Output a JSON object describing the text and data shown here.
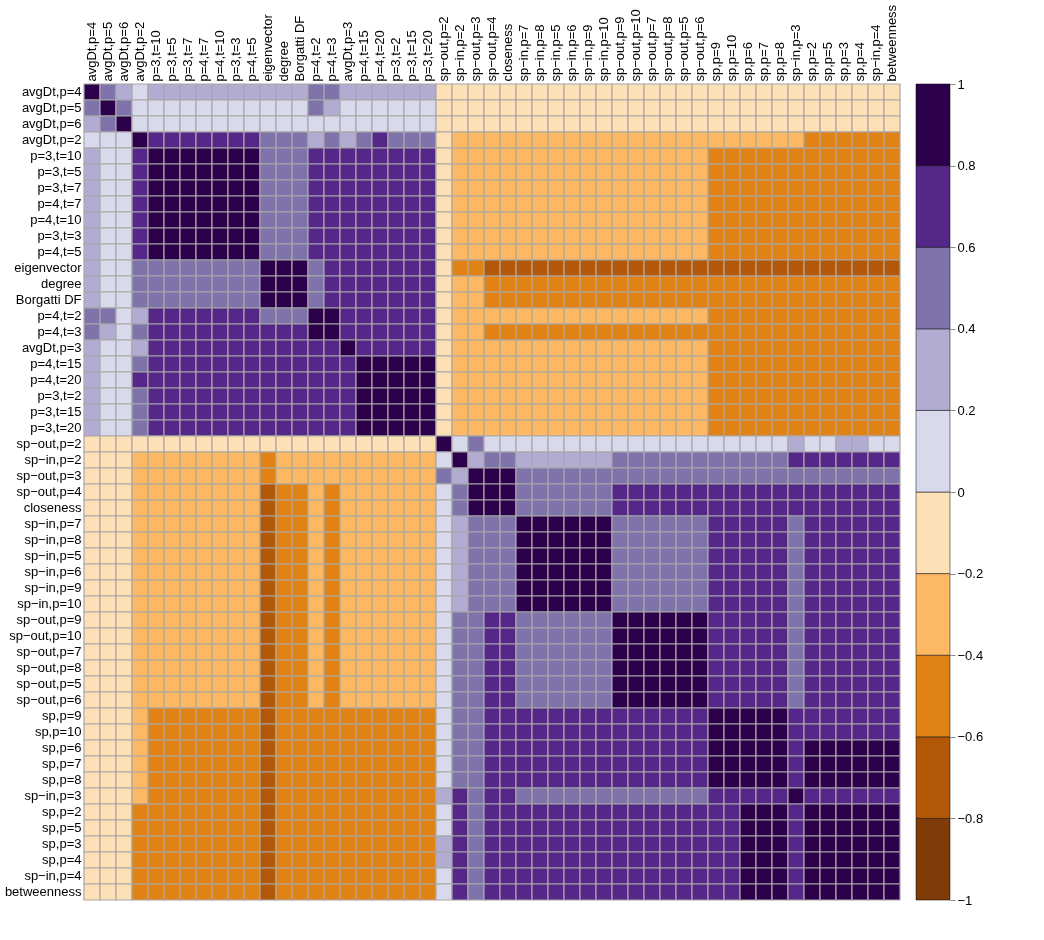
{
  "chart_data": {
    "type": "heatmap",
    "categories": [
      "avgDt,p=4",
      "avgDt,p=5",
      "avgDt,p=6",
      "avgDt,p=2",
      "p=3,t=10",
      "p=3,t=5",
      "p=3,t=7",
      "p=4,t=7",
      "p=4,t=10",
      "p=3,t=3",
      "p=4,t=5",
      "eigenvector",
      "degree",
      "Borgatti DF",
      "p=4,t=2",
      "p=4,t=3",
      "avgDt,p=3",
      "p=4,t=15",
      "p=4,t=20",
      "p=3,t=2",
      "p=3,t=15",
      "p=3,t=20",
      "sp−out,p=2",
      "sp−in,p=2",
      "sp−out,p=3",
      "sp−out,p=4",
      "closeness",
      "sp−in,p=7",
      "sp−in,p=8",
      "sp−in,p=5",
      "sp−in,p=6",
      "sp−in,p=9",
      "sp−in,p=10",
      "sp−out,p=9",
      "sp−out,p=10",
      "sp−out,p=7",
      "sp−out,p=8",
      "sp−out,p=5",
      "sp−out,p=6",
      "sp,p=9",
      "sp,p=10",
      "sp,p=6",
      "sp,p=7",
      "sp,p=8",
      "sp−in,p=3",
      "sp,p=2",
      "sp,p=5",
      "sp,p=3",
      "sp,p=4",
      "sp−in,p=4",
      "betweenness"
    ],
    "y_categories": [
      "avgDt,p=4",
      "avgDt,p=5",
      "avgDt,p=6",
      "avgDt,p=2",
      "p=3,t=10",
      "p=3,t=5",
      "p=3,t=7",
      "p=4,t=7",
      "p=4,t=10",
      "p=3,t=3",
      "p=4,t=5",
      "eigenvector",
      "degree",
      "Borgatti DF",
      "p=4,t=2",
      "p=4,t=3",
      "avgDt,p=3",
      "p=4,t=15",
      "p=4,t=20",
      "p=3,t=2",
      "p=3,t=15",
      "p=3,t=20",
      "sp−out,p=2",
      "sp−in,p=2",
      "sp−out,p=3",
      "sp−out,p=4",
      "closeness",
      "sp−in,p=7",
      "sp−in,p=8",
      "sp−in,p=5",
      "sp−in,p=6",
      "sp−in,p=9",
      "sp−in,p=10",
      "sp−out,p=9",
      "sp−out,p=10",
      "sp−out,p=7",
      "sp−out,p=8",
      "sp−out,p=5",
      "sp−out,p=6",
      "sp,p=9",
      "sp,p=10",
      "sp,p=6",
      "sp,p=7",
      "sp,p=8",
      "sp−in,p=3",
      "sp,p=2",
      "sp,p=5",
      "sp,p=3",
      "sp,p=4",
      "sp−in,p=4",
      "betweenness"
    ],
    "cells": [
      [
        1,
        0.5,
        0.3,
        0.1,
        0.3,
        0.3,
        0.3,
        0.3,
        0.3,
        0.3,
        0.3,
        0.3,
        0.3,
        0.3,
        0.5,
        0.5,
        0.3,
        0.3,
        0.3,
        0.3,
        0.3,
        0.3,
        -0.1,
        -0.1,
        -0.1,
        -0.1,
        -0.1,
        -0.1,
        -0.1,
        -0.1,
        -0.1,
        -0.1,
        -0.1,
        -0.1,
        -0.1,
        -0.1,
        -0.1,
        -0.1,
        -0.1,
        -0.1,
        -0.1,
        -0.1,
        -0.1,
        -0.1,
        -0.1,
        -0.1,
        -0.1,
        -0.1,
        -0.1,
        -0.1,
        -0.1
      ],
      [
        0.5,
        1,
        0.5,
        0.1,
        0.1,
        0.1,
        0.1,
        0.1,
        0.1,
        0.1,
        0.1,
        0.1,
        0.1,
        0.1,
        0.5,
        0.3,
        0.1,
        0.1,
        0.1,
        0.1,
        0.1,
        0.1,
        -0.1,
        -0.1,
        -0.1,
        -0.1,
        -0.1,
        -0.1,
        -0.1,
        -0.1,
        -0.1,
        -0.1,
        -0.1,
        -0.1,
        -0.1,
        -0.1,
        -0.1,
        -0.1,
        -0.1,
        -0.1,
        -0.1,
        -0.1,
        -0.1,
        -0.1,
        -0.1,
        -0.1,
        -0.1,
        -0.1,
        -0.1,
        -0.1,
        -0.1
      ],
      [
        0.3,
        0.5,
        1,
        0.1,
        0.1,
        0.1,
        0.1,
        0.1,
        0.1,
        0.1,
        0.1,
        0.1,
        0.1,
        0.1,
        0.1,
        0.1,
        0.1,
        0.1,
        0.1,
        0.1,
        0.1,
        0.1,
        -0.1,
        -0.1,
        -0.1,
        -0.1,
        -0.1,
        -0.1,
        -0.1,
        -0.1,
        -0.1,
        -0.1,
        -0.1,
        -0.1,
        -0.1,
        -0.1,
        -0.1,
        -0.1,
        -0.1,
        -0.1,
        -0.1,
        -0.1,
        -0.1,
        -0.1,
        -0.1,
        -0.1,
        -0.1,
        -0.1,
        -0.1,
        -0.1,
        -0.1
      ],
      [
        0.1,
        0.1,
        0.1,
        1,
        0.7,
        0.7,
        0.7,
        0.7,
        0.7,
        0.7,
        0.7,
        0.5,
        0.5,
        0.5,
        0.3,
        0.5,
        0.3,
        0.5,
        0.7,
        0.5,
        0.5,
        0.5,
        -0.1,
        -0.3,
        -0.3,
        -0.3,
        -0.3,
        -0.3,
        -0.3,
        -0.3,
        -0.3,
        -0.3,
        -0.3,
        -0.3,
        -0.3,
        -0.3,
        -0.3,
        -0.3,
        -0.3,
        -0.3,
        -0.3,
        -0.3,
        -0.3,
        -0.3,
        -0.3,
        -0.5,
        -0.5,
        -0.5,
        -0.5,
        -0.5,
        -0.5
      ],
      [
        0.3,
        0.1,
        0.1,
        0.7,
        1,
        0.9,
        0.9,
        0.9,
        0.9,
        0.9,
        0.9,
        0.5,
        0.5,
        0.5,
        0.7,
        0.7,
        0.7,
        0.7,
        0.7,
        0.7,
        0.7,
        0.7,
        -0.1,
        -0.3,
        -0.3,
        -0.3,
        -0.3,
        -0.3,
        -0.3,
        -0.3,
        -0.3,
        -0.3,
        -0.3,
        -0.3,
        -0.3,
        -0.3,
        -0.3,
        -0.3,
        -0.3,
        -0.5,
        -0.5,
        -0.5,
        -0.5,
        -0.5,
        -0.5,
        -0.5,
        -0.5,
        -0.5,
        -0.5,
        -0.5,
        -0.5
      ],
      [
        0.3,
        0.1,
        0.1,
        0.7,
        0.9,
        1,
        0.9,
        0.9,
        0.9,
        0.9,
        0.9,
        0.5,
        0.5,
        0.5,
        0.7,
        0.7,
        0.7,
        0.7,
        0.7,
        0.7,
        0.7,
        0.7,
        -0.1,
        -0.3,
        -0.3,
        -0.3,
        -0.3,
        -0.3,
        -0.3,
        -0.3,
        -0.3,
        -0.3,
        -0.3,
        -0.3,
        -0.3,
        -0.3,
        -0.3,
        -0.3,
        -0.3,
        -0.5,
        -0.5,
        -0.5,
        -0.5,
        -0.5,
        -0.5,
        -0.5,
        -0.5,
        -0.5,
        -0.5,
        -0.5,
        -0.5
      ],
      [
        0.3,
        0.1,
        0.1,
        0.7,
        0.9,
        0.9,
        1,
        0.9,
        0.9,
        0.9,
        0.9,
        0.5,
        0.5,
        0.5,
        0.7,
        0.7,
        0.7,
        0.7,
        0.7,
        0.7,
        0.7,
        0.7,
        -0.1,
        -0.3,
        -0.3,
        -0.3,
        -0.3,
        -0.3,
        -0.3,
        -0.3,
        -0.3,
        -0.3,
        -0.3,
        -0.3,
        -0.3,
        -0.3,
        -0.3,
        -0.3,
        -0.3,
        -0.5,
        -0.5,
        -0.5,
        -0.5,
        -0.5,
        -0.5,
        -0.5,
        -0.5,
        -0.5,
        -0.5,
        -0.5,
        -0.5
      ],
      [
        0.3,
        0.1,
        0.1,
        0.7,
        0.9,
        0.9,
        0.9,
        1,
        0.9,
        0.9,
        0.9,
        0.5,
        0.5,
        0.5,
        0.7,
        0.7,
        0.7,
        0.7,
        0.7,
        0.7,
        0.7,
        0.7,
        -0.1,
        -0.3,
        -0.3,
        -0.3,
        -0.3,
        -0.3,
        -0.3,
        -0.3,
        -0.3,
        -0.3,
        -0.3,
        -0.3,
        -0.3,
        -0.3,
        -0.3,
        -0.3,
        -0.3,
        -0.5,
        -0.5,
        -0.5,
        -0.5,
        -0.5,
        -0.5,
        -0.5,
        -0.5,
        -0.5,
        -0.5,
        -0.5,
        -0.5
      ],
      [
        0.3,
        0.1,
        0.1,
        0.7,
        0.9,
        0.9,
        0.9,
        0.9,
        1,
        0.9,
        0.9,
        0.5,
        0.5,
        0.5,
        0.7,
        0.7,
        0.7,
        0.7,
        0.7,
        0.7,
        0.7,
        0.7,
        -0.1,
        -0.3,
        -0.3,
        -0.3,
        -0.3,
        -0.3,
        -0.3,
        -0.3,
        -0.3,
        -0.3,
        -0.3,
        -0.3,
        -0.3,
        -0.3,
        -0.3,
        -0.3,
        -0.3,
        -0.5,
        -0.5,
        -0.5,
        -0.5,
        -0.5,
        -0.5,
        -0.5,
        -0.5,
        -0.5,
        -0.5,
        -0.5,
        -0.5
      ],
      [
        0.3,
        0.1,
        0.1,
        0.7,
        0.9,
        0.9,
        0.9,
        0.9,
        0.9,
        1,
        0.9,
        0.5,
        0.5,
        0.5,
        0.7,
        0.7,
        0.7,
        0.7,
        0.7,
        0.7,
        0.7,
        0.7,
        -0.1,
        -0.3,
        -0.3,
        -0.3,
        -0.3,
        -0.3,
        -0.3,
        -0.3,
        -0.3,
        -0.3,
        -0.3,
        -0.3,
        -0.3,
        -0.3,
        -0.3,
        -0.3,
        -0.3,
        -0.5,
        -0.5,
        -0.5,
        -0.5,
        -0.5,
        -0.5,
        -0.5,
        -0.5,
        -0.5,
        -0.5,
        -0.5,
        -0.5
      ],
      [
        0.3,
        0.1,
        0.1,
        0.7,
        0.9,
        0.9,
        0.9,
        0.9,
        0.9,
        0.9,
        1,
        0.5,
        0.5,
        0.5,
        0.7,
        0.7,
        0.7,
        0.7,
        0.7,
        0.7,
        0.7,
        0.7,
        -0.1,
        -0.3,
        -0.3,
        -0.3,
        -0.3,
        -0.3,
        -0.3,
        -0.3,
        -0.3,
        -0.3,
        -0.3,
        -0.3,
        -0.3,
        -0.3,
        -0.3,
        -0.3,
        -0.3,
        -0.5,
        -0.5,
        -0.5,
        -0.5,
        -0.5,
        -0.5,
        -0.5,
        -0.5,
        -0.5,
        -0.5,
        -0.5,
        -0.5
      ],
      [
        0.3,
        0.1,
        0.1,
        0.5,
        0.5,
        0.5,
        0.5,
        0.5,
        0.5,
        0.5,
        0.5,
        1,
        0.9,
        0.9,
        0.5,
        0.7,
        0.7,
        0.7,
        0.7,
        0.7,
        0.7,
        0.7,
        -0.1,
        -0.5,
        -0.5,
        -0.7,
        -0.7,
        -0.7,
        -0.7,
        -0.7,
        -0.7,
        -0.7,
        -0.7,
        -0.7,
        -0.7,
        -0.7,
        -0.7,
        -0.7,
        -0.7,
        -0.7,
        -0.7,
        -0.7,
        -0.7,
        -0.7,
        -0.7,
        -0.7,
        -0.7,
        -0.7,
        -0.7,
        -0.7,
        -0.7
      ],
      [
        0.3,
        0.1,
        0.1,
        0.5,
        0.5,
        0.5,
        0.5,
        0.5,
        0.5,
        0.5,
        0.5,
        0.9,
        1,
        0.9,
        0.5,
        0.7,
        0.7,
        0.7,
        0.7,
        0.7,
        0.7,
        0.7,
        -0.1,
        -0.3,
        -0.3,
        -0.5,
        -0.5,
        -0.5,
        -0.5,
        -0.5,
        -0.5,
        -0.5,
        -0.5,
        -0.5,
        -0.5,
        -0.5,
        -0.5,
        -0.5,
        -0.5,
        -0.5,
        -0.5,
        -0.5,
        -0.5,
        -0.5,
        -0.5,
        -0.5,
        -0.5,
        -0.5,
        -0.5,
        -0.5,
        -0.5
      ],
      [
        0.3,
        0.1,
        0.1,
        0.5,
        0.5,
        0.5,
        0.5,
        0.5,
        0.5,
        0.5,
        0.5,
        0.9,
        0.9,
        1,
        0.5,
        0.7,
        0.7,
        0.7,
        0.7,
        0.7,
        0.7,
        0.7,
        -0.1,
        -0.3,
        -0.3,
        -0.5,
        -0.5,
        -0.5,
        -0.5,
        -0.5,
        -0.5,
        -0.5,
        -0.5,
        -0.5,
        -0.5,
        -0.5,
        -0.5,
        -0.5,
        -0.5,
        -0.5,
        -0.5,
        -0.5,
        -0.5,
        -0.5,
        -0.5,
        -0.5,
        -0.5,
        -0.5,
        -0.5,
        -0.5,
        -0.5
      ],
      [
        0.5,
        0.5,
        0.1,
        0.3,
        0.7,
        0.7,
        0.7,
        0.7,
        0.7,
        0.7,
        0.7,
        0.5,
        0.5,
        0.5,
        1,
        0.9,
        0.7,
        0.7,
        0.7,
        0.7,
        0.7,
        0.7,
        -0.1,
        -0.3,
        -0.3,
        -0.3,
        -0.3,
        -0.3,
        -0.3,
        -0.3,
        -0.3,
        -0.3,
        -0.3,
        -0.3,
        -0.3,
        -0.3,
        -0.3,
        -0.3,
        -0.3,
        -0.5,
        -0.5,
        -0.5,
        -0.5,
        -0.5,
        -0.5,
        -0.5,
        -0.5,
        -0.5,
        -0.5,
        -0.5,
        -0.5
      ],
      [
        0.5,
        0.3,
        0.1,
        0.5,
        0.7,
        0.7,
        0.7,
        0.7,
        0.7,
        0.7,
        0.7,
        0.7,
        0.7,
        0.7,
        0.9,
        1,
        0.7,
        0.7,
        0.7,
        0.7,
        0.7,
        0.7,
        -0.1,
        -0.3,
        -0.3,
        -0.5,
        -0.5,
        -0.5,
        -0.5,
        -0.5,
        -0.5,
        -0.5,
        -0.5,
        -0.5,
        -0.5,
        -0.5,
        -0.5,
        -0.5,
        -0.5,
        -0.5,
        -0.5,
        -0.5,
        -0.5,
        -0.5,
        -0.5,
        -0.5,
        -0.5,
        -0.5,
        -0.5,
        -0.5,
        -0.5
      ],
      [
        0.3,
        0.1,
        0.1,
        0.3,
        0.7,
        0.7,
        0.7,
        0.7,
        0.7,
        0.7,
        0.7,
        0.7,
        0.7,
        0.7,
        0.7,
        0.7,
        1,
        0.7,
        0.7,
        0.7,
        0.7,
        0.7,
        -0.1,
        -0.3,
        -0.3,
        -0.3,
        -0.3,
        -0.3,
        -0.3,
        -0.3,
        -0.3,
        -0.3,
        -0.3,
        -0.3,
        -0.3,
        -0.3,
        -0.3,
        -0.3,
        -0.3,
        -0.5,
        -0.5,
        -0.5,
        -0.5,
        -0.5,
        -0.5,
        -0.5,
        -0.5,
        -0.5,
        -0.5,
        -0.5,
        -0.5
      ],
      [
        0.3,
        0.1,
        0.1,
        0.5,
        0.7,
        0.7,
        0.7,
        0.7,
        0.7,
        0.7,
        0.7,
        0.7,
        0.7,
        0.7,
        0.7,
        0.7,
        0.7,
        1,
        0.9,
        0.9,
        0.9,
        0.9,
        -0.1,
        -0.3,
        -0.3,
        -0.3,
        -0.3,
        -0.3,
        -0.3,
        -0.3,
        -0.3,
        -0.3,
        -0.3,
        -0.3,
        -0.3,
        -0.3,
        -0.3,
        -0.3,
        -0.3,
        -0.5,
        -0.5,
        -0.5,
        -0.5,
        -0.5,
        -0.5,
        -0.5,
        -0.5,
        -0.5,
        -0.5,
        -0.5,
        -0.5
      ],
      [
        0.3,
        0.1,
        0.1,
        0.7,
        0.7,
        0.7,
        0.7,
        0.7,
        0.7,
        0.7,
        0.7,
        0.7,
        0.7,
        0.7,
        0.7,
        0.7,
        0.7,
        0.9,
        1,
        0.9,
        0.9,
        0.9,
        -0.1,
        -0.3,
        -0.3,
        -0.3,
        -0.3,
        -0.3,
        -0.3,
        -0.3,
        -0.3,
        -0.3,
        -0.3,
        -0.3,
        -0.3,
        -0.3,
        -0.3,
        -0.3,
        -0.3,
        -0.5,
        -0.5,
        -0.5,
        -0.5,
        -0.5,
        -0.5,
        -0.5,
        -0.5,
        -0.5,
        -0.5,
        -0.5,
        -0.5
      ],
      [
        0.3,
        0.1,
        0.1,
        0.5,
        0.7,
        0.7,
        0.7,
        0.7,
        0.7,
        0.7,
        0.7,
        0.7,
        0.7,
        0.7,
        0.7,
        0.7,
        0.7,
        0.9,
        0.9,
        1,
        0.9,
        0.9,
        -0.1,
        -0.3,
        -0.3,
        -0.3,
        -0.3,
        -0.3,
        -0.3,
        -0.3,
        -0.3,
        -0.3,
        -0.3,
        -0.3,
        -0.3,
        -0.3,
        -0.3,
        -0.3,
        -0.3,
        -0.5,
        -0.5,
        -0.5,
        -0.5,
        -0.5,
        -0.5,
        -0.5,
        -0.5,
        -0.5,
        -0.5,
        -0.5,
        -0.5
      ],
      [
        0.3,
        0.1,
        0.1,
        0.5,
        0.7,
        0.7,
        0.7,
        0.7,
        0.7,
        0.7,
        0.7,
        0.7,
        0.7,
        0.7,
        0.7,
        0.7,
        0.7,
        0.9,
        0.9,
        0.9,
        1,
        0.9,
        -0.1,
        -0.3,
        -0.3,
        -0.3,
        -0.3,
        -0.3,
        -0.3,
        -0.3,
        -0.3,
        -0.3,
        -0.3,
        -0.3,
        -0.3,
        -0.3,
        -0.3,
        -0.3,
        -0.3,
        -0.5,
        -0.5,
        -0.5,
        -0.5,
        -0.5,
        -0.5,
        -0.5,
        -0.5,
        -0.5,
        -0.5,
        -0.5,
        -0.5
      ],
      [
        0.3,
        0.1,
        0.1,
        0.5,
        0.7,
        0.7,
        0.7,
        0.7,
        0.7,
        0.7,
        0.7,
        0.7,
        0.7,
        0.7,
        0.7,
        0.7,
        0.7,
        0.9,
        0.9,
        0.9,
        0.9,
        1,
        -0.1,
        -0.3,
        -0.3,
        -0.3,
        -0.3,
        -0.3,
        -0.3,
        -0.3,
        -0.3,
        -0.3,
        -0.3,
        -0.3,
        -0.3,
        -0.3,
        -0.3,
        -0.3,
        -0.3,
        -0.5,
        -0.5,
        -0.5,
        -0.5,
        -0.5,
        -0.5,
        -0.5,
        -0.5,
        -0.5,
        -0.5,
        -0.5,
        -0.5
      ],
      [
        -0.1,
        -0.1,
        -0.1,
        -0.1,
        -0.1,
        -0.1,
        -0.1,
        -0.1,
        -0.1,
        -0.1,
        -0.1,
        -0.1,
        -0.1,
        -0.1,
        -0.1,
        -0.1,
        -0.1,
        -0.1,
        -0.1,
        -0.1,
        -0.1,
        -0.1,
        1,
        0.1,
        0.5,
        0.1,
        0.1,
        0.1,
        0.1,
        0.1,
        0.1,
        0.1,
        0.1,
        0.1,
        0.1,
        0.1,
        0.1,
        0.1,
        0.1,
        0.1,
        0.1,
        0.1,
        0.1,
        0.1,
        0.3,
        0.1,
        0.1,
        0.3,
        0.3,
        0.1,
        0.1
      ],
      [
        -0.1,
        -0.1,
        -0.1,
        -0.3,
        -0.3,
        -0.3,
        -0.3,
        -0.3,
        -0.3,
        -0.3,
        -0.3,
        -0.5,
        -0.3,
        -0.3,
        -0.3,
        -0.3,
        -0.3,
        -0.3,
        -0.3,
        -0.3,
        -0.3,
        -0.3,
        0.1,
        1,
        0.3,
        0.5,
        0.5,
        0.3,
        0.3,
        0.3,
        0.3,
        0.3,
        0.3,
        0.5,
        0.5,
        0.5,
        0.5,
        0.5,
        0.5,
        0.5,
        0.5,
        0.5,
        0.5,
        0.5,
        0.7,
        0.7,
        0.7,
        0.7,
        0.7,
        0.7,
        0.7
      ],
      [
        -0.1,
        -0.1,
        -0.1,
        -0.3,
        -0.3,
        -0.3,
        -0.3,
        -0.3,
        -0.3,
        -0.3,
        -0.3,
        -0.5,
        -0.3,
        -0.3,
        -0.3,
        -0.3,
        -0.3,
        -0.3,
        -0.3,
        -0.3,
        -0.3,
        -0.3,
        0.5,
        0.3,
        1,
        0.9,
        0.9,
        0.5,
        0.5,
        0.5,
        0.5,
        0.5,
        0.5,
        0.5,
        0.5,
        0.5,
        0.5,
        0.5,
        0.5,
        0.5,
        0.5,
        0.5,
        0.5,
        0.5,
        0.5,
        0.5,
        0.5,
        0.5,
        0.5,
        0.5,
        0.5
      ],
      [
        -0.1,
        -0.1,
        -0.1,
        -0.3,
        -0.3,
        -0.3,
        -0.3,
        -0.3,
        -0.3,
        -0.3,
        -0.3,
        -0.7,
        -0.5,
        -0.5,
        -0.3,
        -0.5,
        -0.3,
        -0.3,
        -0.3,
        -0.3,
        -0.3,
        -0.3,
        0.1,
        0.5,
        0.9,
        1,
        0.9,
        0.5,
        0.5,
        0.5,
        0.5,
        0.5,
        0.5,
        0.7,
        0.7,
        0.7,
        0.7,
        0.7,
        0.7,
        0.7,
        0.7,
        0.7,
        0.7,
        0.7,
        0.7,
        0.7,
        0.7,
        0.7,
        0.7,
        0.7,
        0.7
      ],
      [
        -0.1,
        -0.1,
        -0.1,
        -0.3,
        -0.3,
        -0.3,
        -0.3,
        -0.3,
        -0.3,
        -0.3,
        -0.3,
        -0.7,
        -0.5,
        -0.5,
        -0.3,
        -0.5,
        -0.3,
        -0.3,
        -0.3,
        -0.3,
        -0.3,
        -0.3,
        0.1,
        0.5,
        0.9,
        0.9,
        1,
        0.5,
        0.5,
        0.5,
        0.5,
        0.5,
        0.5,
        0.7,
        0.7,
        0.7,
        0.7,
        0.7,
        0.7,
        0.7,
        0.7,
        0.7,
        0.7,
        0.7,
        0.7,
        0.7,
        0.7,
        0.7,
        0.7,
        0.7,
        0.7
      ],
      [
        -0.1,
        -0.1,
        -0.1,
        -0.3,
        -0.3,
        -0.3,
        -0.3,
        -0.3,
        -0.3,
        -0.3,
        -0.3,
        -0.7,
        -0.5,
        -0.5,
        -0.3,
        -0.5,
        -0.3,
        -0.3,
        -0.3,
        -0.3,
        -0.3,
        -0.3,
        0.1,
        0.3,
        0.5,
        0.5,
        0.5,
        1,
        0.9,
        0.9,
        0.9,
        0.9,
        0.9,
        0.5,
        0.5,
        0.5,
        0.5,
        0.5,
        0.5,
        0.7,
        0.7,
        0.7,
        0.7,
        0.7,
        0.5,
        0.7,
        0.7,
        0.7,
        0.7,
        0.7,
        0.7
      ],
      [
        -0.1,
        -0.1,
        -0.1,
        -0.3,
        -0.3,
        -0.3,
        -0.3,
        -0.3,
        -0.3,
        -0.3,
        -0.3,
        -0.7,
        -0.5,
        -0.5,
        -0.3,
        -0.5,
        -0.3,
        -0.3,
        -0.3,
        -0.3,
        -0.3,
        -0.3,
        0.1,
        0.3,
        0.5,
        0.5,
        0.5,
        0.9,
        1,
        0.9,
        0.9,
        0.9,
        0.9,
        0.5,
        0.5,
        0.5,
        0.5,
        0.5,
        0.5,
        0.7,
        0.7,
        0.7,
        0.7,
        0.7,
        0.5,
        0.7,
        0.7,
        0.7,
        0.7,
        0.7,
        0.7
      ],
      [
        -0.1,
        -0.1,
        -0.1,
        -0.3,
        -0.3,
        -0.3,
        -0.3,
        -0.3,
        -0.3,
        -0.3,
        -0.3,
        -0.7,
        -0.5,
        -0.5,
        -0.3,
        -0.5,
        -0.3,
        -0.3,
        -0.3,
        -0.3,
        -0.3,
        -0.3,
        0.1,
        0.3,
        0.5,
        0.5,
        0.5,
        0.9,
        0.9,
        1,
        0.9,
        0.9,
        0.9,
        0.5,
        0.5,
        0.5,
        0.5,
        0.5,
        0.5,
        0.7,
        0.7,
        0.7,
        0.7,
        0.7,
        0.5,
        0.7,
        0.7,
        0.7,
        0.7,
        0.7,
        0.7
      ],
      [
        -0.1,
        -0.1,
        -0.1,
        -0.3,
        -0.3,
        -0.3,
        -0.3,
        -0.3,
        -0.3,
        -0.3,
        -0.3,
        -0.7,
        -0.5,
        -0.5,
        -0.3,
        -0.5,
        -0.3,
        -0.3,
        -0.3,
        -0.3,
        -0.3,
        -0.3,
        0.1,
        0.3,
        0.5,
        0.5,
        0.5,
        0.9,
        0.9,
        0.9,
        1,
        0.9,
        0.9,
        0.5,
        0.5,
        0.5,
        0.5,
        0.5,
        0.5,
        0.7,
        0.7,
        0.7,
        0.7,
        0.7,
        0.5,
        0.7,
        0.7,
        0.7,
        0.7,
        0.7,
        0.7
      ],
      [
        -0.1,
        -0.1,
        -0.1,
        -0.3,
        -0.3,
        -0.3,
        -0.3,
        -0.3,
        -0.3,
        -0.3,
        -0.3,
        -0.7,
        -0.5,
        -0.5,
        -0.3,
        -0.5,
        -0.3,
        -0.3,
        -0.3,
        -0.3,
        -0.3,
        -0.3,
        0.1,
        0.3,
        0.5,
        0.5,
        0.5,
        0.9,
        0.9,
        0.9,
        0.9,
        1,
        0.9,
        0.5,
        0.5,
        0.5,
        0.5,
        0.5,
        0.5,
        0.7,
        0.7,
        0.7,
        0.7,
        0.7,
        0.5,
        0.7,
        0.7,
        0.7,
        0.7,
        0.7,
        0.7
      ],
      [
        -0.1,
        -0.1,
        -0.1,
        -0.3,
        -0.3,
        -0.3,
        -0.3,
        -0.3,
        -0.3,
        -0.3,
        -0.3,
        -0.7,
        -0.5,
        -0.5,
        -0.3,
        -0.5,
        -0.3,
        -0.3,
        -0.3,
        -0.3,
        -0.3,
        -0.3,
        0.1,
        0.3,
        0.5,
        0.5,
        0.5,
        0.9,
        0.9,
        0.9,
        0.9,
        0.9,
        1,
        0.5,
        0.5,
        0.5,
        0.5,
        0.5,
        0.5,
        0.7,
        0.7,
        0.7,
        0.7,
        0.7,
        0.5,
        0.7,
        0.7,
        0.7,
        0.7,
        0.7,
        0.7
      ],
      [
        -0.1,
        -0.1,
        -0.1,
        -0.3,
        -0.3,
        -0.3,
        -0.3,
        -0.3,
        -0.3,
        -0.3,
        -0.3,
        -0.7,
        -0.5,
        -0.5,
        -0.3,
        -0.5,
        -0.3,
        -0.3,
        -0.3,
        -0.3,
        -0.3,
        -0.3,
        0.1,
        0.5,
        0.5,
        0.7,
        0.7,
        0.5,
        0.5,
        0.5,
        0.5,
        0.5,
        0.5,
        1,
        0.9,
        0.9,
        0.9,
        0.9,
        0.9,
        0.7,
        0.7,
        0.7,
        0.7,
        0.7,
        0.5,
        0.7,
        0.7,
        0.7,
        0.7,
        0.7,
        0.7
      ],
      [
        -0.1,
        -0.1,
        -0.1,
        -0.3,
        -0.3,
        -0.3,
        -0.3,
        -0.3,
        -0.3,
        -0.3,
        -0.3,
        -0.7,
        -0.5,
        -0.5,
        -0.3,
        -0.5,
        -0.3,
        -0.3,
        -0.3,
        -0.3,
        -0.3,
        -0.3,
        0.1,
        0.5,
        0.5,
        0.7,
        0.7,
        0.5,
        0.5,
        0.5,
        0.5,
        0.5,
        0.5,
        0.9,
        1,
        0.9,
        0.9,
        0.9,
        0.9,
        0.7,
        0.7,
        0.7,
        0.7,
        0.7,
        0.5,
        0.7,
        0.7,
        0.7,
        0.7,
        0.7,
        0.7
      ],
      [
        -0.1,
        -0.1,
        -0.1,
        -0.3,
        -0.3,
        -0.3,
        -0.3,
        -0.3,
        -0.3,
        -0.3,
        -0.3,
        -0.7,
        -0.5,
        -0.5,
        -0.3,
        -0.5,
        -0.3,
        -0.3,
        -0.3,
        -0.3,
        -0.3,
        -0.3,
        0.1,
        0.5,
        0.5,
        0.7,
        0.7,
        0.5,
        0.5,
        0.5,
        0.5,
        0.5,
        0.5,
        0.9,
        0.9,
        1,
        0.9,
        0.9,
        0.9,
        0.7,
        0.7,
        0.7,
        0.7,
        0.7,
        0.5,
        0.7,
        0.7,
        0.7,
        0.7,
        0.7,
        0.7
      ],
      [
        -0.1,
        -0.1,
        -0.1,
        -0.3,
        -0.3,
        -0.3,
        -0.3,
        -0.3,
        -0.3,
        -0.3,
        -0.3,
        -0.7,
        -0.5,
        -0.5,
        -0.3,
        -0.5,
        -0.3,
        -0.3,
        -0.3,
        -0.3,
        -0.3,
        -0.3,
        0.1,
        0.5,
        0.5,
        0.7,
        0.7,
        0.5,
        0.5,
        0.5,
        0.5,
        0.5,
        0.5,
        0.9,
        0.9,
        0.9,
        1,
        0.9,
        0.9,
        0.7,
        0.7,
        0.7,
        0.7,
        0.7,
        0.5,
        0.7,
        0.7,
        0.7,
        0.7,
        0.7,
        0.7
      ],
      [
        -0.1,
        -0.1,
        -0.1,
        -0.3,
        -0.3,
        -0.3,
        -0.3,
        -0.3,
        -0.3,
        -0.3,
        -0.3,
        -0.7,
        -0.5,
        -0.5,
        -0.3,
        -0.5,
        -0.3,
        -0.3,
        -0.3,
        -0.3,
        -0.3,
        -0.3,
        0.1,
        0.5,
        0.5,
        0.7,
        0.7,
        0.5,
        0.5,
        0.5,
        0.5,
        0.5,
        0.5,
        0.9,
        0.9,
        0.9,
        0.9,
        1,
        0.9,
        0.7,
        0.7,
        0.7,
        0.7,
        0.7,
        0.5,
        0.7,
        0.7,
        0.7,
        0.7,
        0.7,
        0.7
      ],
      [
        -0.1,
        -0.1,
        -0.1,
        -0.3,
        -0.3,
        -0.3,
        -0.3,
        -0.3,
        -0.3,
        -0.3,
        -0.3,
        -0.7,
        -0.5,
        -0.5,
        -0.3,
        -0.5,
        -0.3,
        -0.3,
        -0.3,
        -0.3,
        -0.3,
        -0.3,
        0.1,
        0.5,
        0.5,
        0.7,
        0.7,
        0.5,
        0.5,
        0.5,
        0.5,
        0.5,
        0.5,
        0.9,
        0.9,
        0.9,
        0.9,
        0.9,
        1,
        0.7,
        0.7,
        0.7,
        0.7,
        0.7,
        0.5,
        0.7,
        0.7,
        0.7,
        0.7,
        0.7,
        0.7
      ],
      [
        -0.1,
        -0.1,
        -0.1,
        -0.3,
        -0.5,
        -0.5,
        -0.5,
        -0.5,
        -0.5,
        -0.5,
        -0.5,
        -0.7,
        -0.5,
        -0.5,
        -0.5,
        -0.5,
        -0.5,
        -0.5,
        -0.5,
        -0.5,
        -0.5,
        -0.5,
        0.1,
        0.5,
        0.5,
        0.7,
        0.7,
        0.7,
        0.7,
        0.7,
        0.7,
        0.7,
        0.7,
        0.7,
        0.7,
        0.7,
        0.7,
        0.7,
        0.7,
        1,
        0.9,
        0.9,
        0.9,
        0.9,
        0.7,
        0.7,
        0.7,
        0.7,
        0.7,
        0.7,
        0.7
      ],
      [
        -0.1,
        -0.1,
        -0.1,
        -0.3,
        -0.5,
        -0.5,
        -0.5,
        -0.5,
        -0.5,
        -0.5,
        -0.5,
        -0.7,
        -0.5,
        -0.5,
        -0.5,
        -0.5,
        -0.5,
        -0.5,
        -0.5,
        -0.5,
        -0.5,
        -0.5,
        0.1,
        0.5,
        0.5,
        0.7,
        0.7,
        0.7,
        0.7,
        0.7,
        0.7,
        0.7,
        0.7,
        0.7,
        0.7,
        0.7,
        0.7,
        0.7,
        0.7,
        0.9,
        1,
        0.9,
        0.9,
        0.9,
        0.7,
        0.7,
        0.7,
        0.7,
        0.7,
        0.7,
        0.7
      ],
      [
        -0.1,
        -0.1,
        -0.1,
        -0.3,
        -0.5,
        -0.5,
        -0.5,
        -0.5,
        -0.5,
        -0.5,
        -0.5,
        -0.7,
        -0.5,
        -0.5,
        -0.5,
        -0.5,
        -0.5,
        -0.5,
        -0.5,
        -0.5,
        -0.5,
        -0.5,
        0.1,
        0.5,
        0.5,
        0.7,
        0.7,
        0.7,
        0.7,
        0.7,
        0.7,
        0.7,
        0.7,
        0.7,
        0.7,
        0.7,
        0.7,
        0.7,
        0.7,
        0.9,
        0.9,
        1,
        0.9,
        0.9,
        0.7,
        0.9,
        0.9,
        0.9,
        0.9,
        0.9,
        0.9
      ],
      [
        -0.1,
        -0.1,
        -0.1,
        -0.3,
        -0.5,
        -0.5,
        -0.5,
        -0.5,
        -0.5,
        -0.5,
        -0.5,
        -0.7,
        -0.5,
        -0.5,
        -0.5,
        -0.5,
        -0.5,
        -0.5,
        -0.5,
        -0.5,
        -0.5,
        -0.5,
        0.1,
        0.5,
        0.5,
        0.7,
        0.7,
        0.7,
        0.7,
        0.7,
        0.7,
        0.7,
        0.7,
        0.7,
        0.7,
        0.7,
        0.7,
        0.7,
        0.7,
        0.9,
        0.9,
        0.9,
        1,
        0.9,
        0.7,
        0.9,
        0.9,
        0.9,
        0.9,
        0.9,
        0.9
      ],
      [
        -0.1,
        -0.1,
        -0.1,
        -0.3,
        -0.5,
        -0.5,
        -0.5,
        -0.5,
        -0.5,
        -0.5,
        -0.5,
        -0.7,
        -0.5,
        -0.5,
        -0.5,
        -0.5,
        -0.5,
        -0.5,
        -0.5,
        -0.5,
        -0.5,
        -0.5,
        0.1,
        0.5,
        0.5,
        0.7,
        0.7,
        0.7,
        0.7,
        0.7,
        0.7,
        0.7,
        0.7,
        0.7,
        0.7,
        0.7,
        0.7,
        0.7,
        0.7,
        0.9,
        0.9,
        0.9,
        0.9,
        1,
        0.7,
        0.9,
        0.9,
        0.9,
        0.9,
        0.9,
        0.9
      ],
      [
        -0.1,
        -0.1,
        -0.1,
        -0.3,
        -0.5,
        -0.5,
        -0.5,
        -0.5,
        -0.5,
        -0.5,
        -0.5,
        -0.7,
        -0.5,
        -0.5,
        -0.5,
        -0.5,
        -0.5,
        -0.5,
        -0.5,
        -0.5,
        -0.5,
        -0.5,
        0.3,
        0.7,
        0.5,
        0.7,
        0.7,
        0.5,
        0.5,
        0.5,
        0.5,
        0.5,
        0.5,
        0.5,
        0.5,
        0.5,
        0.5,
        0.5,
        0.5,
        0.7,
        0.7,
        0.7,
        0.7,
        0.7,
        1,
        0.7,
        0.7,
        0.7,
        0.7,
        0.7,
        0.7
      ],
      [
        -0.1,
        -0.1,
        -0.1,
        -0.5,
        -0.5,
        -0.5,
        -0.5,
        -0.5,
        -0.5,
        -0.5,
        -0.5,
        -0.7,
        -0.5,
        -0.5,
        -0.5,
        -0.5,
        -0.5,
        -0.5,
        -0.5,
        -0.5,
        -0.5,
        -0.5,
        0.1,
        0.7,
        0.5,
        0.7,
        0.7,
        0.7,
        0.7,
        0.7,
        0.7,
        0.7,
        0.7,
        0.7,
        0.7,
        0.7,
        0.7,
        0.7,
        0.7,
        0.7,
        0.7,
        0.9,
        0.9,
        0.9,
        0.7,
        1,
        0.9,
        0.9,
        0.9,
        0.9,
        0.9
      ],
      [
        -0.1,
        -0.1,
        -0.1,
        -0.5,
        -0.5,
        -0.5,
        -0.5,
        -0.5,
        -0.5,
        -0.5,
        -0.5,
        -0.7,
        -0.5,
        -0.5,
        -0.5,
        -0.5,
        -0.5,
        -0.5,
        -0.5,
        -0.5,
        -0.5,
        -0.5,
        0.1,
        0.7,
        0.5,
        0.7,
        0.7,
        0.7,
        0.7,
        0.7,
        0.7,
        0.7,
        0.7,
        0.7,
        0.7,
        0.7,
        0.7,
        0.7,
        0.7,
        0.7,
        0.7,
        0.9,
        0.9,
        0.9,
        0.7,
        0.9,
        1,
        0.9,
        0.9,
        0.9,
        0.9
      ],
      [
        -0.1,
        -0.1,
        -0.1,
        -0.5,
        -0.5,
        -0.5,
        -0.5,
        -0.5,
        -0.5,
        -0.5,
        -0.5,
        -0.7,
        -0.5,
        -0.5,
        -0.5,
        -0.5,
        -0.5,
        -0.5,
        -0.5,
        -0.5,
        -0.5,
        -0.5,
        0.3,
        0.7,
        0.5,
        0.7,
        0.7,
        0.7,
        0.7,
        0.7,
        0.7,
        0.7,
        0.7,
        0.7,
        0.7,
        0.7,
        0.7,
        0.7,
        0.7,
        0.7,
        0.7,
        0.9,
        0.9,
        0.9,
        0.7,
        0.9,
        0.9,
        1,
        0.9,
        0.9,
        0.9
      ],
      [
        -0.1,
        -0.1,
        -0.1,
        -0.5,
        -0.5,
        -0.5,
        -0.5,
        -0.5,
        -0.5,
        -0.5,
        -0.5,
        -0.7,
        -0.5,
        -0.5,
        -0.5,
        -0.5,
        -0.5,
        -0.5,
        -0.5,
        -0.5,
        -0.5,
        -0.5,
        0.3,
        0.7,
        0.5,
        0.7,
        0.7,
        0.7,
        0.7,
        0.7,
        0.7,
        0.7,
        0.7,
        0.7,
        0.7,
        0.7,
        0.7,
        0.7,
        0.7,
        0.7,
        0.7,
        0.9,
        0.9,
        0.9,
        0.7,
        0.9,
        0.9,
        0.9,
        1,
        0.9,
        0.9
      ],
      [
        -0.1,
        -0.1,
        -0.1,
        -0.5,
        -0.5,
        -0.5,
        -0.5,
        -0.5,
        -0.5,
        -0.5,
        -0.5,
        -0.7,
        -0.5,
        -0.5,
        -0.5,
        -0.5,
        -0.5,
        -0.5,
        -0.5,
        -0.5,
        -0.5,
        -0.5,
        0.1,
        0.7,
        0.5,
        0.7,
        0.7,
        0.7,
        0.7,
        0.7,
        0.7,
        0.7,
        0.7,
        0.7,
        0.7,
        0.7,
        0.7,
        0.7,
        0.7,
        0.7,
        0.7,
        0.9,
        0.9,
        0.9,
        0.7,
        0.9,
        0.9,
        0.9,
        0.9,
        1,
        0.9
      ],
      [
        -0.1,
        -0.1,
        -0.1,
        -0.5,
        -0.5,
        -0.5,
        -0.5,
        -0.5,
        -0.5,
        -0.5,
        -0.5,
        -0.7,
        -0.5,
        -0.5,
        -0.5,
        -0.5,
        -0.5,
        -0.5,
        -0.5,
        -0.5,
        -0.5,
        -0.5,
        0.1,
        0.7,
        0.5,
        0.7,
        0.7,
        0.7,
        0.7,
        0.7,
        0.7,
        0.7,
        0.7,
        0.7,
        0.7,
        0.7,
        0.7,
        0.7,
        0.7,
        0.7,
        0.7,
        0.9,
        0.9,
        0.9,
        0.7,
        0.9,
        0.9,
        0.9,
        0.9,
        0.9,
        1
      ]
    ],
    "clim": [
      -1,
      1
    ],
    "cticks": [
      -1,
      -0.8,
      -0.6,
      -0.4,
      -0.2,
      0,
      0.2,
      0.4,
      0.6,
      0.8,
      1
    ],
    "colors": [
      "#7f3b08",
      "#b35806",
      "#e08214",
      "#fdb863",
      "#fee0b6",
      "#d8daeb",
      "#b2abd2",
      "#8073ac",
      "#542788",
      "#2d004b"
    ]
  }
}
